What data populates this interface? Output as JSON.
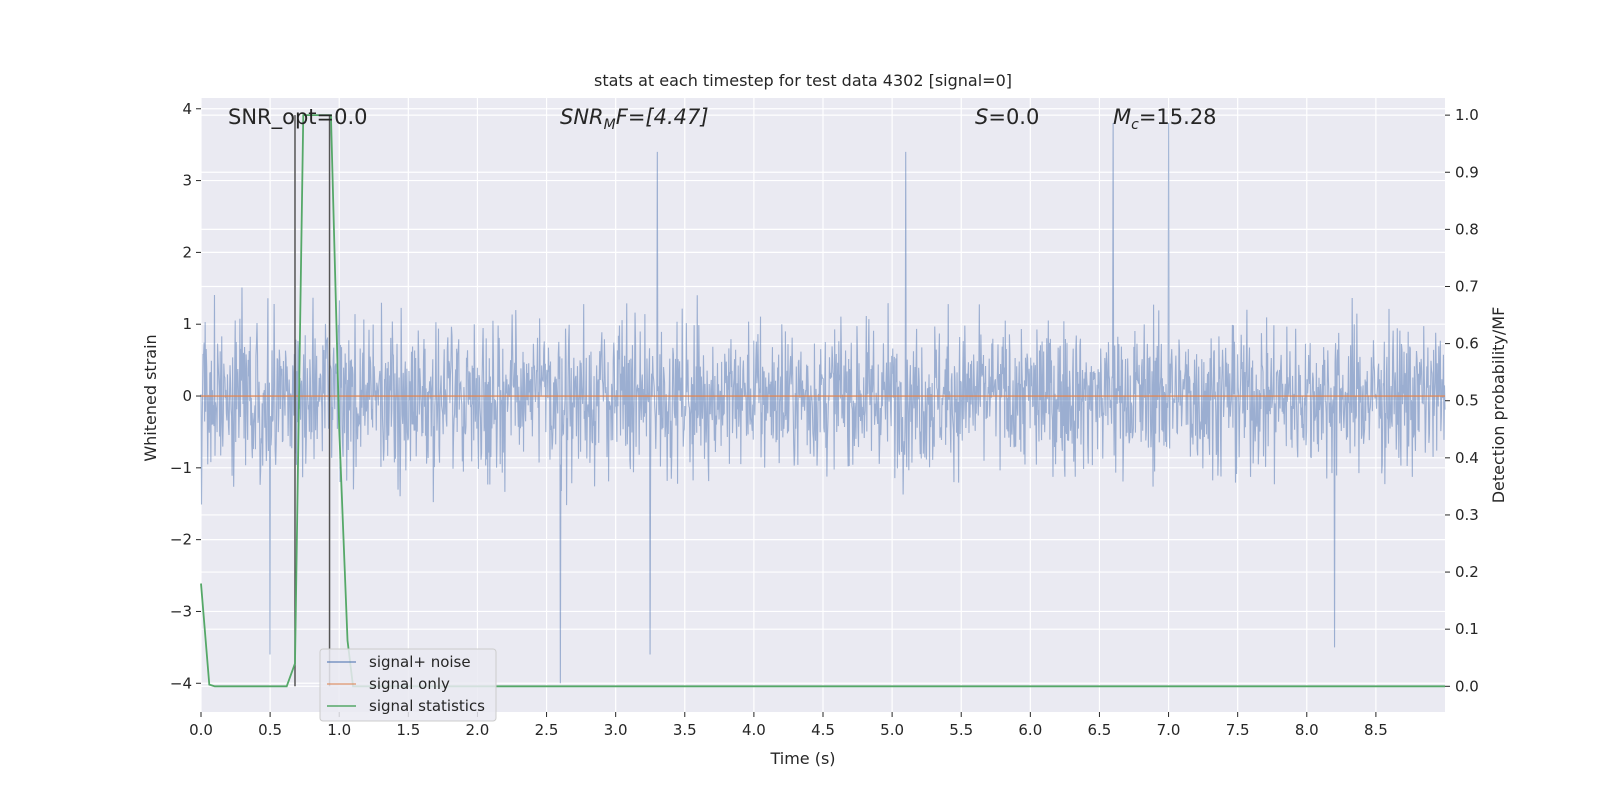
{
  "chart_data": {
    "type": "line",
    "title": "stats at each timestep for test data 4302 [signal=0]",
    "xlabel": "Time (s)",
    "ylabel": "Whitened strain",
    "ylabel_right": "Detection probability/MF",
    "xlim": [
      0.0,
      9.0
    ],
    "ylim": [
      -4.4,
      4.15
    ],
    "ylim_right": [
      -0.045,
      1.03
    ],
    "x_ticks": [
      0.0,
      0.5,
      1.0,
      1.5,
      2.0,
      2.5,
      3.0,
      3.5,
      4.0,
      4.5,
      5.0,
      5.5,
      6.0,
      6.5,
      7.0,
      7.5,
      8.0,
      8.5
    ],
    "x_tick_labels": [
      "0.0",
      "0.5",
      "1.0",
      "1.5",
      "2.0",
      "2.5",
      "3.0",
      "3.5",
      "4.0",
      "4.5",
      "5.0",
      "5.5",
      "6.0",
      "6.5",
      "7.0",
      "7.5",
      "8.0",
      "8.5"
    ],
    "y_ticks": [
      -4,
      -3,
      -2,
      -1,
      0,
      1,
      2,
      3,
      4
    ],
    "y_tick_labels": [
      "−4",
      "−3",
      "−2",
      "−1",
      "0",
      "1",
      "2",
      "3",
      "4"
    ],
    "y_right_ticks": [
      0.0,
      0.1,
      0.2,
      0.3,
      0.4,
      0.5,
      0.6,
      0.7,
      0.8,
      0.9,
      1.0
    ],
    "y_right_tick_labels": [
      "0.0",
      "0.1",
      "0.2",
      "0.3",
      "0.4",
      "0.5",
      "0.6",
      "0.7",
      "0.8",
      "0.9",
      "1.0"
    ],
    "grid": true,
    "legend_position": "lower-left",
    "annotations": [
      {
        "label": "SNR_opt=0.0",
        "italic": false
      },
      {
        "label": "SNR_MF=[4.47]",
        "main": "SNR",
        "sub": "M",
        "rest": "F=[4.47]",
        "italic": true
      },
      {
        "label": "S=0.0",
        "main": "S",
        "rest": "=0.0",
        "italic": true
      },
      {
        "label": "M_c=15.28",
        "main": "M",
        "sub": "c",
        "rest": "=15.28",
        "italic": true
      }
    ],
    "series": [
      {
        "name": "signal+ noise",
        "color": "#4c72b0",
        "axis": "left",
        "kind": "noise-trace",
        "x_range": [
          0.0,
          9.0
        ],
        "envelope_typical": [
          -1.5,
          1.5
        ],
        "extremes": [
          [
            0.5,
            -3.6
          ],
          [
            2.6,
            -4.0
          ],
          [
            3.25,
            -3.6
          ],
          [
            3.3,
            3.4
          ],
          [
            5.1,
            3.4
          ],
          [
            6.6,
            3.8
          ],
          [
            7.0,
            3.8
          ],
          [
            8.2,
            -3.5
          ]
        ]
      },
      {
        "name": "signal only",
        "color": "#dd8452",
        "axis": "left",
        "x": [
          0.0,
          9.0
        ],
        "y": [
          0.0,
          0.0
        ]
      },
      {
        "name": "signal statistics",
        "color": "#55a868",
        "axis": "right",
        "x": [
          0.0,
          0.06,
          0.1,
          0.62,
          0.68,
          0.74,
          0.94,
          1.0,
          1.06,
          1.1,
          9.0
        ],
        "y": [
          0.18,
          0.003,
          0.0,
          0.0,
          0.04,
          1.0,
          1.0,
          0.45,
          0.08,
          0.0,
          0.0
        ]
      }
    ],
    "vertical_markers": [
      {
        "x": 0.68,
        "color": "#555555"
      },
      {
        "x": 0.93,
        "color": "#555555"
      }
    ]
  }
}
